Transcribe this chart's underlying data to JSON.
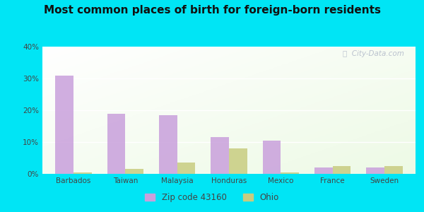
{
  "title": "Most common places of birth for foreign-born residents",
  "categories": [
    "Barbados",
    "Taiwan",
    "Malaysia",
    "Honduras",
    "Mexico",
    "France",
    "Sweden"
  ],
  "zip_values": [
    31,
    19,
    18.5,
    11.5,
    10.5,
    2,
    2
  ],
  "ohio_values": [
    0.5,
    1.5,
    3.5,
    8,
    0.5,
    2.5,
    2.5
  ],
  "zip_color": "#c9a0dc",
  "ohio_color": "#c8cc80",
  "ylim": [
    0,
    40
  ],
  "yticks": [
    0,
    10,
    20,
    30,
    40
  ],
  "ytick_labels": [
    "0%",
    "10%",
    "20%",
    "30%",
    "40%"
  ],
  "legend_zip_label": "Zip code 43160",
  "legend_ohio_label": "Ohio",
  "bg_outer": "#00e5f5",
  "watermark": "ⓘ  City-Data.com",
  "title_fontsize": 11,
  "bar_width": 0.35
}
